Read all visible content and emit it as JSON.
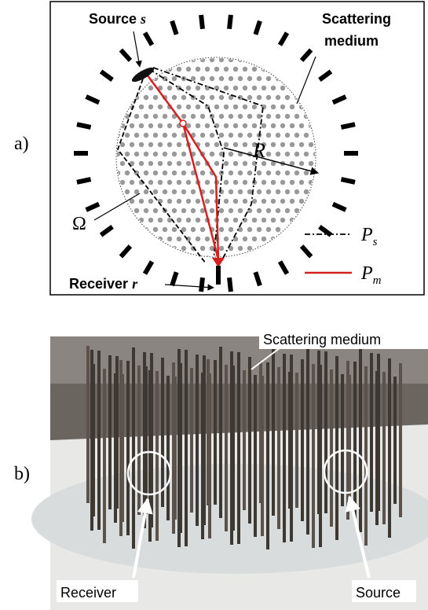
{
  "panel_a": {
    "label": "a)",
    "source": {
      "text": "Source",
      "var": "s"
    },
    "medium": [
      "Scattering",
      "medium"
    ],
    "radius": "R",
    "domain": "Ω",
    "receiver": {
      "text": "Receiver",
      "var": "r"
    },
    "legend": [
      {
        "symbol": "P",
        "sub": "s"
      },
      {
        "symbol": "P",
        "sub": "m"
      }
    ]
  },
  "panel_b": {
    "label": "b)",
    "medium": "Scattering medium",
    "receiver": "Receiver",
    "source": "Source"
  }
}
